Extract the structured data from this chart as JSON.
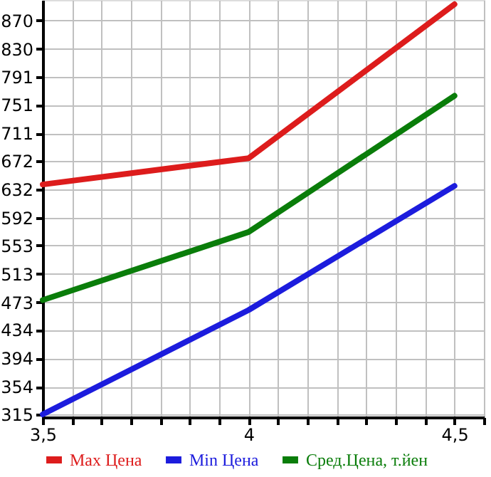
{
  "chart_data": {
    "type": "line",
    "x": [
      3.5,
      4,
      4.5
    ],
    "series": [
      {
        "name": "Max Цена",
        "color": "#dd1c1c",
        "values": [
          639,
          676,
          893
        ]
      },
      {
        "name": "Min Цена",
        "color": "#1c1cdd",
        "values": [
          315,
          462,
          637
        ]
      },
      {
        "name": "Сред.Цена, т.йен",
        "color": "#0a7d0a",
        "values": [
          476,
          572,
          764
        ]
      }
    ],
    "xlim": [
      3.5,
      4.5714
    ],
    "xticks": [
      {
        "value": 3.5,
        "label": "3,5"
      },
      {
        "value": 3.5714,
        "label": null
      },
      {
        "value": 3.6429,
        "label": null
      },
      {
        "value": 3.7143,
        "label": null
      },
      {
        "value": 3.7857,
        "label": null
      },
      {
        "value": 3.8571,
        "label": null
      },
      {
        "value": 3.9286,
        "label": null
      },
      {
        "value": 4,
        "label": "4"
      },
      {
        "value": 4.0714,
        "label": null
      },
      {
        "value": 4.1429,
        "label": null
      },
      {
        "value": 4.2143,
        "label": null
      },
      {
        "value": 4.2857,
        "label": null
      },
      {
        "value": 4.3571,
        "label": null
      },
      {
        "value": 4.4286,
        "label": null
      },
      {
        "value": 4.5,
        "label": "4,5"
      },
      {
        "value": 4.5714,
        "label": null
      }
    ],
    "ylim": [
      311,
      899
    ],
    "yticks": [
      315,
      354,
      394,
      434,
      473,
      513,
      553,
      592,
      632,
      672,
      711,
      751,
      791,
      830,
      870
    ],
    "grid": true,
    "legend": "bottom",
    "marker": "none",
    "line_style": "solid"
  }
}
